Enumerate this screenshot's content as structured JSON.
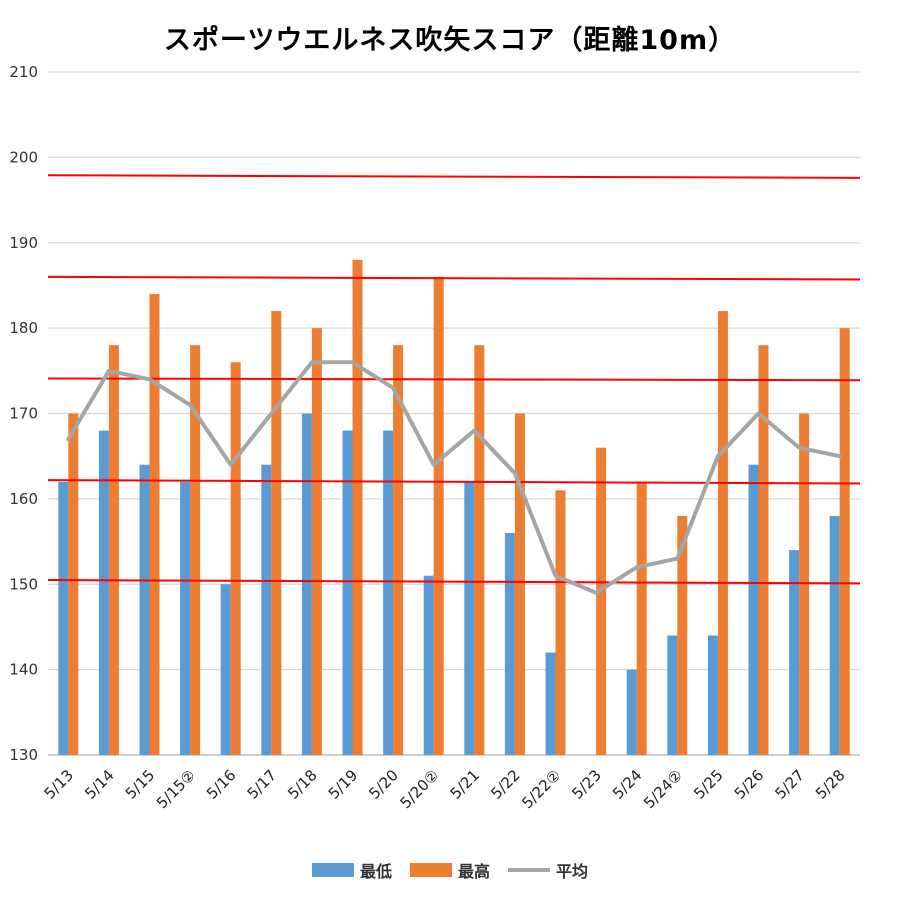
{
  "chart_data": {
    "type": "bar",
    "title": "スポーツウエルネス吹矢スコア（距離10m）",
    "categories": [
      "5/13",
      "5/14",
      "5/15",
      "5/15②",
      "5/16",
      "5/17",
      "5/18",
      "5/19",
      "5/20",
      "5/20②",
      "5/21",
      "5/22",
      "5/22②",
      "5/23",
      "5/24",
      "5/24②",
      "5/25",
      "5/26",
      "5/27",
      "5/28"
    ],
    "series": [
      {
        "name": "最低",
        "kind": "bar",
        "color": "#5b9bd5",
        "values": [
          162,
          168,
          164,
          162,
          150,
          164,
          170,
          168,
          168,
          151,
          162,
          156,
          142,
          130,
          140,
          144,
          144,
          164,
          154,
          158
        ]
      },
      {
        "name": "最高",
        "kind": "bar",
        "color": "#ed7d31",
        "values": [
          170,
          178,
          184,
          178,
          176,
          182,
          180,
          188,
          178,
          186,
          178,
          170,
          161,
          166,
          162,
          158,
          182,
          178,
          170,
          180
        ]
      },
      {
        "name": "平均",
        "kind": "line",
        "color": "#a5a5a5",
        "values": [
          167,
          175,
          174,
          171,
          164,
          170,
          176,
          176,
          173,
          164,
          168,
          163,
          151,
          149,
          152,
          153,
          165,
          170,
          166,
          165
        ]
      }
    ],
    "ylim": [
      130,
      210
    ],
    "yticks": [
      130,
      140,
      150,
      160,
      170,
      180,
      190,
      200,
      210
    ],
    "reference_lines": [
      {
        "color": "#ff0000",
        "start": 150.5,
        "end": 150.1
      },
      {
        "color": "#ff0000",
        "start": 162.2,
        "end": 161.8
      },
      {
        "color": "#ff0000",
        "start": 174.1,
        "end": 173.9
      },
      {
        "color": "#ff0000",
        "start": 186.0,
        "end": 185.7
      },
      {
        "color": "#ff0000",
        "start": 197.9,
        "end": 197.6
      }
    ],
    "grid": true,
    "legend_position": "bottom"
  }
}
